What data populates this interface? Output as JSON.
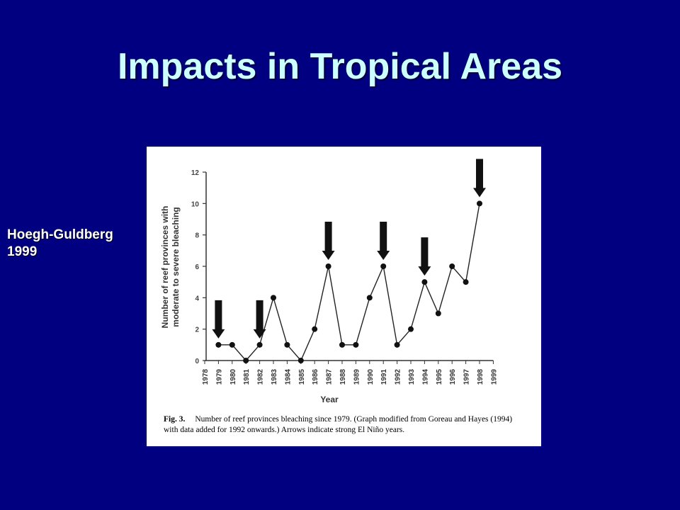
{
  "slide": {
    "title": "Impacts in Tropical Areas",
    "attribution_line1": "Hoegh-Guldberg",
    "attribution_line2": "1999"
  },
  "chart_data": {
    "type": "line",
    "xlabel": "Year",
    "ylabel_line1": "Number of reef provinces with",
    "ylabel_line2": "moderate to severe bleaching",
    "ylim": [
      0,
      12
    ],
    "yticks": [
      0,
      2,
      4,
      6,
      8,
      10,
      12
    ],
    "xticks": [
      "1978",
      "1979",
      "1980",
      "1981",
      "1982",
      "1983",
      "1984",
      "1985",
      "1986",
      "1987",
      "1988",
      "1989",
      "1990",
      "1991",
      "1992",
      "1993",
      "1994",
      "1995",
      "1996",
      "1997",
      "1998",
      "1999"
    ],
    "x": [
      1979,
      1980,
      1981,
      1982,
      1983,
      1984,
      1985,
      1986,
      1987,
      1988,
      1989,
      1990,
      1991,
      1992,
      1993,
      1994,
      1995,
      1996,
      1997,
      1998
    ],
    "values": [
      1,
      1,
      0,
      1,
      4,
      1,
      0,
      2,
      6,
      1,
      1,
      4,
      6,
      1,
      2,
      5,
      3,
      6,
      5,
      10
    ],
    "el_nino_arrow_years": [
      1979,
      1982,
      1987,
      1991,
      1994,
      1998
    ],
    "caption_label": "Fig. 3.",
    "caption_text": "Number of reef provinces bleaching since 1979. (Graph modified from Goreau and Hayes (1994) with data added for 1992 onwards.) Arrows indicate strong El Niño years.",
    "colors": {
      "line": "#222222",
      "marker": "#111111",
      "arrow": "#111111"
    }
  }
}
